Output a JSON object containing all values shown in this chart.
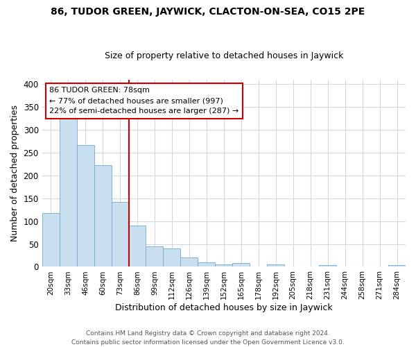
{
  "title": "86, TUDOR GREEN, JAYWICK, CLACTON-ON-SEA, CO15 2PE",
  "subtitle": "Size of property relative to detached houses in Jaywick",
  "xlabel": "Distribution of detached houses by size in Jaywick",
  "ylabel": "Number of detached properties",
  "bar_color": "#c8dff0",
  "bar_edge_color": "#7fb3d3",
  "categories": [
    "20sqm",
    "33sqm",
    "46sqm",
    "60sqm",
    "73sqm",
    "86sqm",
    "99sqm",
    "112sqm",
    "126sqm",
    "139sqm",
    "152sqm",
    "165sqm",
    "178sqm",
    "192sqm",
    "205sqm",
    "218sqm",
    "231sqm",
    "244sqm",
    "258sqm",
    "271sqm",
    "284sqm"
  ],
  "values": [
    118,
    330,
    267,
    222,
    142,
    91,
    45,
    40,
    20,
    10,
    6,
    8,
    1,
    6,
    1,
    0,
    4,
    0,
    0,
    0,
    4
  ],
  "vline_color": "#cc0000",
  "annotation_text": "86 TUDOR GREEN: 78sqm\n← 77% of detached houses are smaller (997)\n22% of semi-detached houses are larger (287) →",
  "annotation_box_color": "white",
  "annotation_box_edge_color": "#cc0000",
  "ylim": [
    0,
    410
  ],
  "yticks": [
    0,
    50,
    100,
    150,
    200,
    250,
    300,
    350,
    400
  ],
  "footer": "Contains HM Land Registry data © Crown copyright and database right 2024.\nContains public sector information licensed under the Open Government Licence v3.0.",
  "background_color": "#ffffff",
  "grid_color": "#d0d8e0"
}
